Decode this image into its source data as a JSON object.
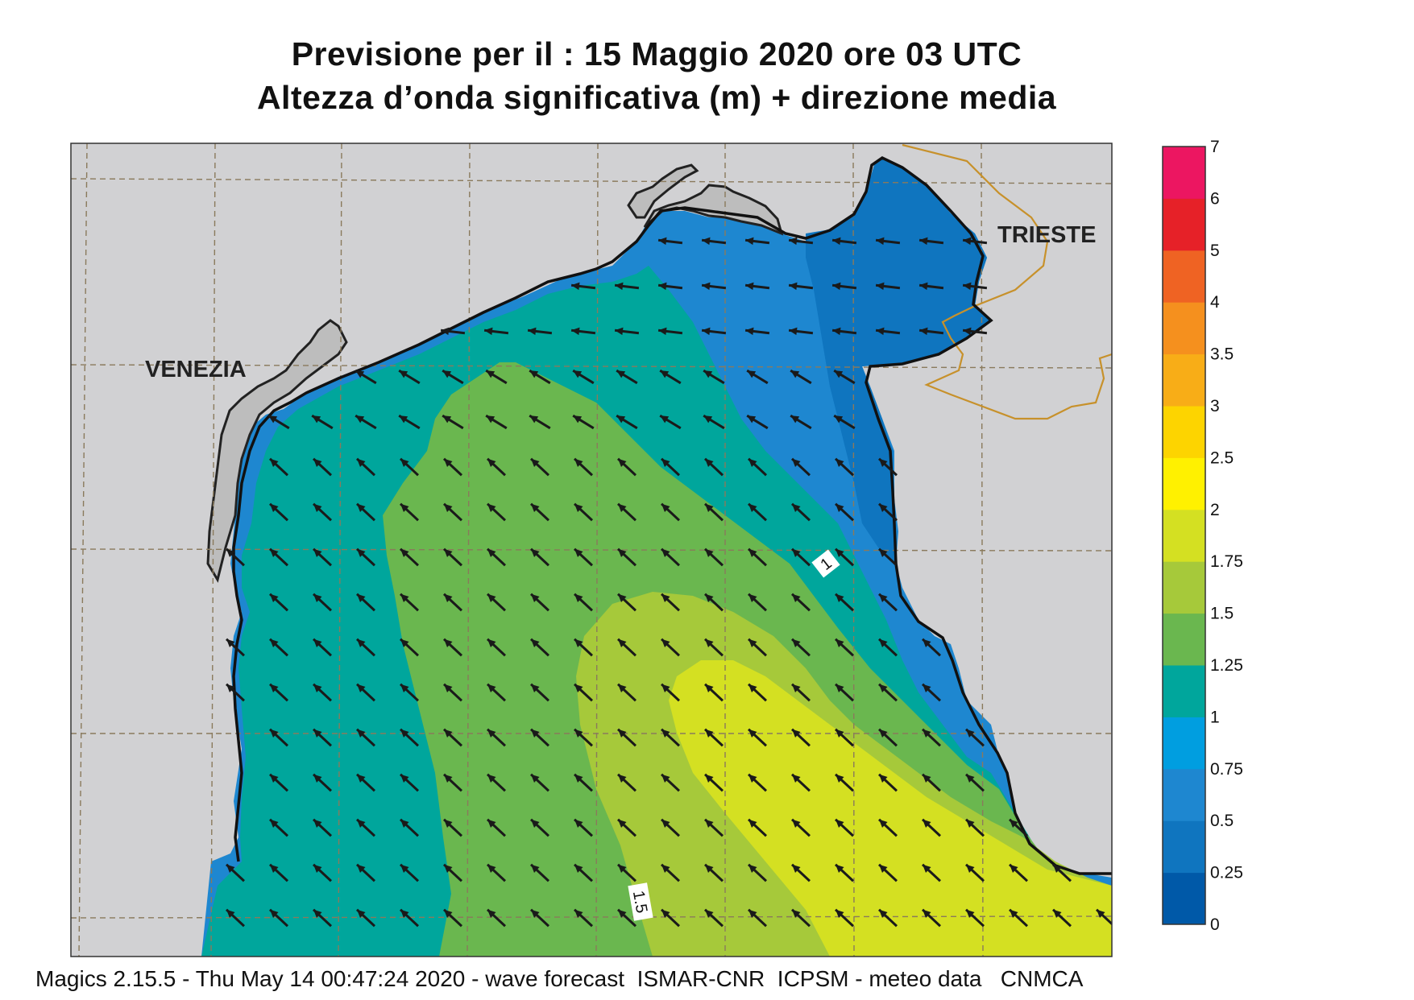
{
  "title_line1": "Previsione per il  :  15   Maggio  2020   ore 03 UTC",
  "title_line2": "Altezza d’onda significativa (m) + direzione media",
  "footer": "Magics 2.15.5 - Thu May 14 00:47:24 2020 - wave forecast  ISMAR-CNR  ICPSM - meteo data   CNMCA",
  "cities": {
    "venezia": "VENEZIA",
    "trieste": "TRIESTE"
  },
  "contour_labels": {
    "one": "1",
    "one_five": "1.5"
  },
  "colorbar": {
    "labels": [
      "7",
      "6",
      "5",
      "4",
      "3.5",
      "3",
      "2.5",
      "2",
      "1.75",
      "1.5",
      "1.25",
      "1",
      "0.75",
      "0.5",
      "0.25",
      "0"
    ],
    "colors": [
      "#ec1661",
      "#e62128",
      "#ef6323",
      "#f5901e",
      "#f8ad17",
      "#fdd400",
      "#fff100",
      "#d4e022",
      "#a6c93a",
      "#6ab74f",
      "#00a69c",
      "#009ee0",
      "#1e87d0",
      "#0f75bf",
      "#0059a8"
    ]
  },
  "field": {
    "land_color": "#d1d1d3",
    "direction": "waves travelling toward the north-west"
  }
}
